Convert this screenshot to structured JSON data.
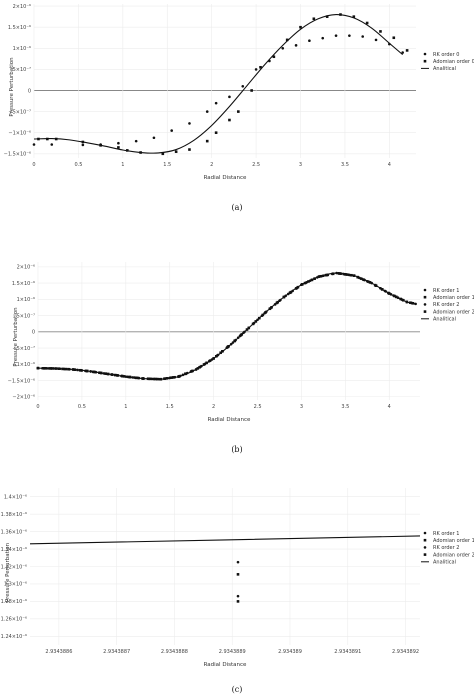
{
  "chart_data": [
    {
      "type": "scatter",
      "caption": "(a)",
      "xlabel": "Radial Distance",
      "ylabel": "Pressure Perturbation",
      "xlim": [
        0,
        4.3
      ],
      "ylim": [
        -1.6e-06,
        2.05e-06
      ],
      "xticks": [
        0,
        0.5,
        1,
        1.5,
        2,
        2.5,
        3,
        3.5,
        4
      ],
      "xtick_labels": [
        "0",
        "0.5",
        "1",
        "1.5",
        "2",
        "2.5",
        "3",
        "3.5",
        "4"
      ],
      "yticks": [
        2e-06,
        1.5e-06,
        1e-06,
        5e-07,
        0,
        -5e-07,
        -1e-06,
        -1.5e-06
      ],
      "ytick_labels": [
        "2×10⁻⁶",
        "1.5×10⁻⁶",
        "1×10⁻⁶",
        "5×10⁻⁷",
        "0",
        "−5×10⁻⁷",
        "−1×10⁻⁶",
        "−1.5×10⁻⁶"
      ],
      "grid": true,
      "legend_position": "right",
      "series": [
        {
          "name": "RK order 0",
          "kind": "points",
          "x": [
            0,
            0.2,
            0.55,
            0.75,
            0.95,
            1.15,
            1.35,
            1.55,
            1.75,
            1.95,
            2.05,
            2.2,
            2.35,
            2.5,
            2.65,
            2.8,
            2.95,
            3.1,
            3.25,
            3.4,
            3.55,
            3.7,
            3.85,
            4.0,
            4.15
          ],
          "y": [
            -1.28e-06,
            -1.28e-06,
            -1.29e-06,
            -1.28e-06,
            -1.25e-06,
            -1.2e-06,
            -1.12e-06,
            -9.5e-07,
            -7.8e-07,
            -5e-07,
            -3e-07,
            -1.5e-07,
            1e-07,
            5e-07,
            7e-07,
            1e-06,
            1.07e-06,
            1.18e-06,
            1.24e-06,
            1.3e-06,
            1.3e-06,
            1.28e-06,
            1.2e-06,
            1.1e-06,
            9e-07
          ]
        },
        {
          "name": "Adomian order 0",
          "kind": "points",
          "x": [
            0.05,
            0.15,
            0.25,
            0.55,
            0.75,
            0.95,
            1.05,
            1.2,
            1.45,
            1.6,
            1.75,
            1.95,
            2.05,
            2.2,
            2.3,
            2.45,
            2.55,
            2.7,
            2.85,
            3.0,
            3.15,
            3.3,
            3.45,
            3.6,
            3.75,
            3.9,
            4.05,
            4.2
          ],
          "y": [
            -1.15e-06,
            -1.15e-06,
            -1.15e-06,
            -1.22e-06,
            -1.3e-06,
            -1.35e-06,
            -1.42e-06,
            -1.47e-06,
            -1.5e-06,
            -1.45e-06,
            -1.4e-06,
            -1.2e-06,
            -1e-06,
            -7e-07,
            -5e-07,
            0,
            5.5e-07,
            8e-07,
            1.2e-06,
            1.5e-06,
            1.7e-06,
            1.75e-06,
            1.8e-06,
            1.75e-06,
            1.6e-06,
            1.4e-06,
            1.25e-06,
            9.5e-07
          ]
        },
        {
          "name": "Analitical",
          "kind": "line",
          "x": [
            0,
            0.2,
            0.4,
            0.6,
            0.8,
            1.0,
            1.2,
            1.4,
            1.6,
            1.8,
            2.0,
            2.2,
            2.4,
            2.6,
            2.8,
            3.0,
            3.2,
            3.4,
            3.6,
            3.8,
            4.0,
            4.15
          ],
          "y": [
            -1.15e-06,
            -1.14e-06,
            -1.17e-06,
            -1.24e-06,
            -1.32e-06,
            -1.41e-06,
            -1.47e-06,
            -1.48e-06,
            -1.4e-06,
            -1.18e-06,
            -8.3e-07,
            -3.8e-07,
            1.2e-07,
            6.2e-07,
            1.07e-06,
            1.45e-06,
            1.7e-06,
            1.8e-06,
            1.72e-06,
            1.48e-06,
            1.12e-06,
            8.5e-07
          ]
        }
      ]
    },
    {
      "type": "scatter",
      "caption": "(b)",
      "xlabel": "Radial Distance",
      "ylabel": "Pressure Perturbation",
      "xlim": [
        0,
        4.35
      ],
      "ylim": [
        -2.1e-06,
        2.15e-06
      ],
      "xticks": [
        0,
        0.5,
        1,
        1.5,
        2,
        2.5,
        3,
        3.5,
        4
      ],
      "xtick_labels": [
        "0",
        "0.5",
        "1",
        "1.5",
        "2",
        "2.5",
        "3",
        "3.5",
        "4"
      ],
      "yticks": [
        2e-06,
        1.5e-06,
        1e-06,
        5e-07,
        0,
        -5e-07,
        -1e-06,
        -1.5e-06,
        -2e-06
      ],
      "ytick_labels": [
        "2×10⁻⁶",
        "1.5×10⁻⁶",
        "1×10⁻⁶",
        "5×10⁻⁷",
        "0",
        "−5×10⁻⁷",
        "−1×10⁻⁶",
        "−1.5×10⁻⁶",
        "−2×10⁻⁶"
      ],
      "grid": true,
      "legend_position": "right",
      "series": [
        {
          "name": "RK order 1",
          "kind": "points",
          "sampled": "analytical",
          "step": 0.05
        },
        {
          "name": "Adomian order 1",
          "kind": "points",
          "sampled": "analytical",
          "step": 0.07
        },
        {
          "name": "RK order 2",
          "kind": "points",
          "sampled": "analytical",
          "step": 0.06
        },
        {
          "name": "Adomian order 2",
          "kind": "points",
          "sampled": "analytical",
          "step": 0.08
        },
        {
          "name": "Analitical",
          "kind": "line",
          "x": [
            0,
            0.2,
            0.4,
            0.6,
            0.8,
            1.0,
            1.2,
            1.4,
            1.6,
            1.8,
            2.0,
            2.2,
            2.4,
            2.6,
            2.8,
            3.0,
            3.2,
            3.4,
            3.6,
            3.8,
            4.0,
            4.2,
            4.3
          ],
          "y": [
            -1.12e-06,
            -1.13e-06,
            -1.16e-06,
            -1.22e-06,
            -1.3e-06,
            -1.38e-06,
            -1.44e-06,
            -1.46e-06,
            -1.38e-06,
            -1.16e-06,
            -8.2e-07,
            -3.8e-07,
            1.2e-07,
            6.2e-07,
            1.07e-06,
            1.45e-06,
            1.7e-06,
            1.81e-06,
            1.73e-06,
            1.5e-06,
            1.18e-06,
            9.2e-07,
            8.6e-07
          ]
        }
      ]
    },
    {
      "type": "scatter",
      "caption": "(c)",
      "xlabel": "Radial Distance",
      "ylabel": "Pressure Perturbation",
      "xlim": [
        2.93438855,
        2.934389225
      ],
      "ylim": [
        1.23e-06,
        1.41e-06
      ],
      "xticks": [
        2.9343886,
        2.9343887,
        2.9343888,
        2.9343889,
        2.934389,
        2.9343891,
        2.9343892
      ],
      "xtick_labels": [
        "2.9343886",
        "2.9343887",
        "2.9343888",
        "2.9343889",
        "2.934389",
        "2.9343891",
        "2.9343892"
      ],
      "yticks": [
        1.4e-06,
        1.38e-06,
        1.36e-06,
        1.34e-06,
        1.32e-06,
        1.3e-06,
        1.28e-06,
        1.26e-06,
        1.24e-06
      ],
      "ytick_labels": [
        "1.4×10⁻⁶",
        "1.38×10⁻⁶",
        "1.36×10⁻⁶",
        "1.34×10⁻⁶",
        "1.32×10⁻⁶",
        "1.3×10⁻⁶",
        "1.28×10⁻⁶",
        "1.26×10⁻⁶",
        "1.24×10⁻⁶"
      ],
      "grid": true,
      "legend_position": "right",
      "series": [
        {
          "name": "RK order 1",
          "kind": "points",
          "x": [
            2.93438891
          ],
          "y": [
            1.325e-06
          ]
        },
        {
          "name": "Adomian order 1",
          "kind": "points",
          "x": [
            2.93438891
          ],
          "y": [
            1.311e-06
          ]
        },
        {
          "name": "RK order 2",
          "kind": "points",
          "x": [
            2.93438891
          ],
          "y": [
            1.286e-06
          ]
        },
        {
          "name": "Adomian order 2",
          "kind": "points",
          "x": [
            2.93438891
          ],
          "y": [
            1.28e-06
          ]
        },
        {
          "name": "Analitical",
          "kind": "line",
          "x": [
            2.93438855,
            2.934389225
          ],
          "y": [
            1.346e-06,
            1.355e-06
          ]
        }
      ]
    }
  ]
}
